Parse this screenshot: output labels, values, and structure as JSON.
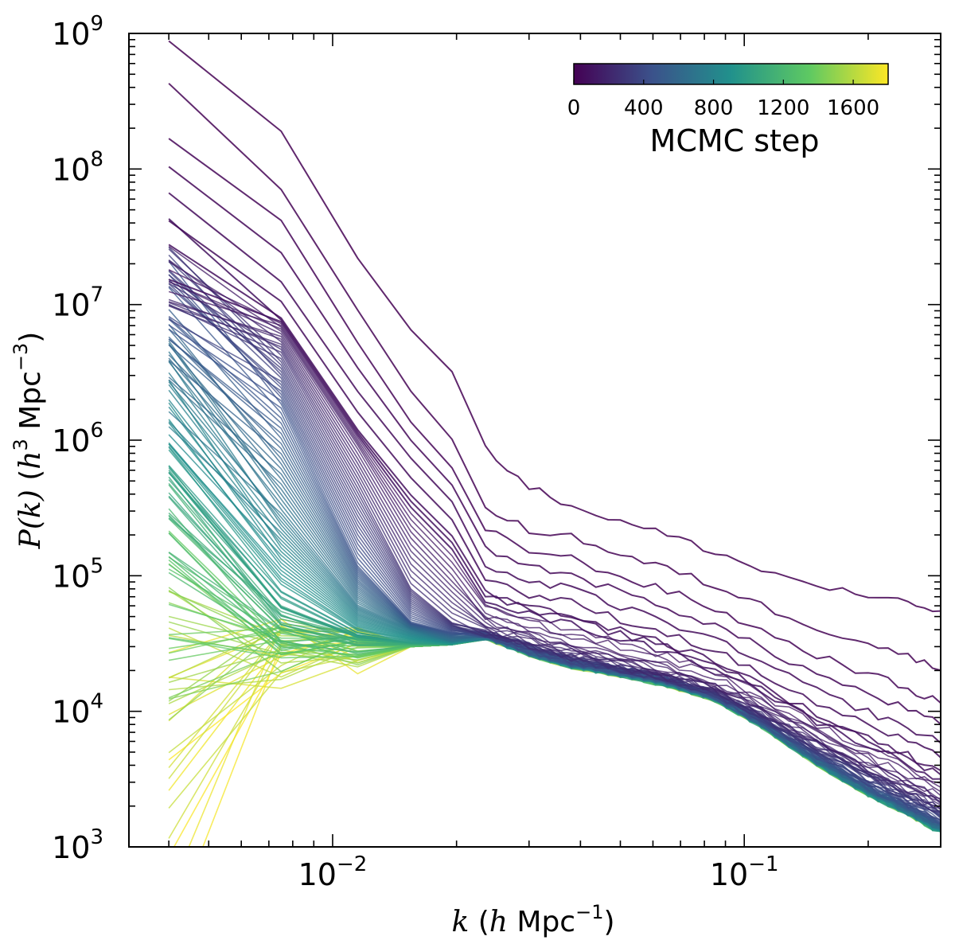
{
  "chart_data": {
    "type": "line",
    "title": "",
    "xscale": "log",
    "yscale": "log",
    "xlim": [
      0.0032,
      0.3
    ],
    "ylim": [
      1000,
      1000000000
    ],
    "x_ticks": [
      {
        "value": 0.01,
        "base": "10",
        "exp": "−2"
      },
      {
        "value": 0.1,
        "base": "10",
        "exp": "−1"
      }
    ],
    "y_ticks": [
      {
        "value": 1000,
        "base": "10",
        "exp": "3"
      },
      {
        "value": 10000,
        "base": "10",
        "exp": "4"
      },
      {
        "value": 100000,
        "base": "10",
        "exp": "5"
      },
      {
        "value": 1000000,
        "base": "10",
        "exp": "6"
      },
      {
        "value": 10000000,
        "base": "10",
        "exp": "7"
      },
      {
        "value": 100000000,
        "base": "10",
        "exp": "8"
      },
      {
        "value": 1000000000,
        "base": "10",
        "exp": "9"
      }
    ],
    "xlabel": {
      "sym": "k",
      "open": " (",
      "h": "h",
      "unit": " Mpc",
      "exp": "−1",
      "close": ")"
    },
    "ylabel": {
      "sym": "P(k)",
      "open": " (",
      "h": "h",
      "hexp": "3",
      "unit": " Mpc",
      "exp": "−3",
      "close": ")"
    },
    "colorbar": {
      "label": "MCMC step",
      "range": [
        0,
        1800
      ],
      "ticks": [
        "0",
        "400",
        "800",
        "1200",
        "1600"
      ],
      "tick_values": [
        0,
        400,
        800,
        1200,
        1600
      ],
      "colormap": "viridis",
      "colormap_stops": [
        "#440154",
        "#3b528b",
        "#21918c",
        "#5ec962",
        "#fde725"
      ],
      "placement": "top-right"
    },
    "k_bins": [
      0.004,
      0.0075,
      0.0115,
      0.0155,
      0.0195,
      0.0235,
      0.03,
      0.038,
      0.05,
      0.065,
      0.085,
      0.11,
      0.15,
      0.2,
      0.25,
      0.3
    ],
    "converged_spectrum": [
      28000,
      29000,
      27000,
      30000,
      31000,
      36000,
      27000,
      22000,
      19000,
      16000,
      12500,
      8000,
      4200,
      2500,
      1800,
      1300
    ],
    "series_summary": "About 1800 power-spectrum curves P(k), one per MCMC step, colored by step. Early steps (purple) start with large amplitudes (up to ~9e8 at the lowest k) and decay toward the converged spectrum (yellow), which is flat at ~3e4 for k < 0.05 and falls to ~1e3 at k = 0.3.",
    "series": [
      {
        "name": "MCMC step 0",
        "step": 0,
        "values": [
          880000000,
          190000000,
          22000000,
          6500000,
          3200000,
          900000,
          450000,
          330000,
          250000,
          200000,
          150000,
          110000,
          85000,
          70000,
          62000,
          55000
        ]
      },
      {
        "name": "MCMC step 10",
        "step": 10,
        "values": [
          500000000,
          77000000,
          10000000,
          2500000,
          1100000,
          330000,
          230000,
          210000,
          150000,
          120000,
          90000,
          65000,
          45000,
          35000,
          28000,
          22000
        ]
      },
      {
        "name": "MCMC step 25",
        "step": 25,
        "values": [
          155000000,
          40000000,
          5000000,
          1300000,
          600000,
          210000,
          150000,
          130000,
          95000,
          75000,
          55000,
          38000,
          25000,
          18000,
          14000,
          11000
        ]
      },
      {
        "name": "MCMC step 45",
        "step": 45,
        "values": [
          75000000,
          16000000,
          2500000,
          800000,
          380000,
          130000,
          95000,
          85000,
          62000,
          48000,
          35000,
          24000,
          15000,
          10500,
          8000,
          6200
        ]
      },
      {
        "name": "MCMC step 70",
        "step": 70,
        "values": [
          28000000,
          8000000,
          1200000,
          400000,
          200000,
          80000,
          60000,
          52000,
          40000,
          32000,
          24000,
          16000,
          9500,
          6500,
          4800,
          3700
        ]
      },
      {
        "name": "MCMC step 150",
        "step": 150,
        "values": [
          18000000,
          6500000,
          900000,
          200000,
          95000,
          48000,
          38000,
          30000,
          25000,
          20000,
          16000,
          11000,
          6500,
          4200,
          3000,
          2300
        ]
      },
      {
        "name": "MCMC step 250",
        "step": 250,
        "values": [
          16000000,
          4500000,
          450000,
          80000,
          45000,
          38000,
          31000,
          25000,
          21000,
          17500,
          14000,
          9500,
          5500,
          3500,
          2500,
          1900
        ]
      },
      {
        "name": "MCMC step 450",
        "step": 450,
        "values": [
          12000000,
          1800000,
          120000,
          45000,
          38000,
          37000,
          28000,
          23000,
          20000,
          17000,
          13000,
          8500,
          4600,
          2800,
          2000,
          1500
        ]
      },
      {
        "name": "MCMC step 700",
        "step": 700,
        "values": [
          3000000,
          300000,
          60000,
          40000,
          33000,
          36000,
          27500,
          22500,
          19500,
          16500,
          12700,
          8200,
          4300,
          2600,
          1850,
          1350
        ]
      },
      {
        "name": "MCMC step 1000",
        "step": 1000,
        "values": [
          600000,
          60000,
          35000,
          32000,
          31000,
          36000,
          27000,
          22000,
          19000,
          16000,
          12500,
          8000,
          4200,
          2500,
          1800,
          1300
        ]
      },
      {
        "name": "MCMC step 1300",
        "step": 1300,
        "values": [
          100000,
          30000,
          30000,
          30000,
          31000,
          36000,
          27000,
          22000,
          19000,
          16000,
          12500,
          8000,
          4200,
          2500,
          1800,
          1300
        ]
      },
      {
        "name": "MCMC step 1600",
        "step": 1600,
        "values": [
          12000,
          28000,
          29000,
          30000,
          31000,
          36000,
          27000,
          22000,
          19000,
          16000,
          12500,
          8000,
          4200,
          2500,
          1800,
          1300
        ]
      },
      {
        "name": "MCMC step 1800",
        "step": 1800,
        "values": [
          2000,
          25000,
          28000,
          30000,
          31000,
          36000,
          27000,
          22000,
          19000,
          16000,
          12500,
          8000,
          4200,
          2500,
          1800,
          1300
        ]
      }
    ]
  }
}
